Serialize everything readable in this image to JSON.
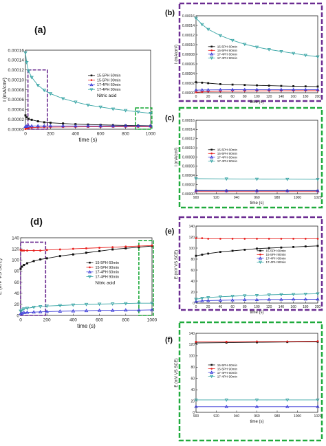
{
  "figure": {
    "colors": {
      "black": "#111111",
      "red": "#e8201e",
      "blue": "#3a3ad8",
      "teal": "#3aa6a6",
      "purple": "#6b2c91",
      "green": "#1faa3c"
    },
    "series_names": [
      "15-5PH 60min",
      "15-5PH 90min",
      "17-4PH 60min",
      "17-4PH 90min"
    ]
  },
  "chart_data": [
    {
      "id": "a",
      "type": "line",
      "panel_label": "(a)",
      "title": "",
      "xlabel": "time (s)",
      "ylabel": "I (mA/cm²)",
      "xlim": [
        0,
        1000
      ],
      "ylim": [
        0,
        0.00016
      ],
      "xticks": [
        "0",
        "200",
        "400",
        "600",
        "800",
        "1000"
      ],
      "yticks": [
        "0.00000",
        "0.00002",
        "0.00004",
        "0.00006",
        "0.00008",
        "0.00010",
        "0.00012",
        "0.00014",
        "0.00016"
      ],
      "legend_position": "center-right",
      "annotation": "Nitric acid",
      "highlight_boxes": [
        {
          "color": "purple",
          "x": [
            20,
            175
          ],
          "y": [
            0,
            0.00012
          ]
        },
        {
          "color": "green",
          "x": [
            880,
            1010
          ],
          "y": [
            0,
            4.3e-05
          ]
        }
      ],
      "series": [
        {
          "name": "15-5PH 60min",
          "color": "black",
          "x": [
            0,
            10,
            25,
            50,
            100,
            150,
            200,
            300,
            400,
            500,
            600,
            700,
            800,
            900,
            1000
          ],
          "values": [
            2.8e-05,
            2.4e-05,
            2.1e-05,
            1.9e-05,
            1.6e-05,
            1.4e-05,
            1.3e-05,
            1.15e-05,
            1.02e-05,
            9.4e-06,
            8.7e-06,
            8.2e-06,
            7.8e-06,
            7.4e-06,
            7.1e-06
          ]
        },
        {
          "name": "15-5PH 90min",
          "color": "red",
          "x": [
            0,
            10,
            25,
            50,
            100,
            150,
            200,
            300,
            400,
            500,
            600,
            700,
            800,
            900,
            1000
          ],
          "values": [
            5e-07,
            1.5e-06,
            2.5e-06,
            3.2e-06,
            3.8e-06,
            4.1e-06,
            4.3e-06,
            4.5e-06,
            4.6e-06,
            4.7e-06,
            4.7e-06,
            4.8e-06,
            4.8e-06,
            4.8e-06,
            4.8e-06
          ]
        },
        {
          "name": "17-4PH 60min",
          "color": "blue",
          "x": [
            0,
            10,
            25,
            50,
            100,
            150,
            200,
            300,
            400,
            500,
            600,
            700,
            800,
            900,
            1000
          ],
          "values": [
            5.5e-06,
            6e-06,
            6.3e-06,
            6.5e-06,
            6.6e-06,
            6.6e-06,
            6.6e-06,
            6.6e-06,
            6.6e-06,
            6.6e-06,
            6.6e-06,
            6.6e-06,
            6.6e-06,
            6.6e-06,
            6.6e-06
          ]
        },
        {
          "name": "17-4PH 90min",
          "color": "teal",
          "x": [
            0,
            10,
            25,
            50,
            100,
            150,
            200,
            300,
            400,
            500,
            600,
            700,
            800,
            900,
            1000
          ],
          "values": [
            0.000155,
            0.000135,
            0.000118,
            0.000105,
            8.9e-05,
            7.9e-05,
            7.2e-05,
            6.2e-05,
            5.5e-05,
            4.9e-05,
            4.5e-05,
            4.1e-05,
            3.8e-05,
            3.5e-05,
            3.2e-05
          ]
        }
      ]
    },
    {
      "id": "b",
      "type": "line",
      "panel_label": "(b)",
      "title": "",
      "xlabel": "time (s)",
      "ylabel": "I (mA/cm²)",
      "xlim": [
        0,
        200
      ],
      "ylim": [
        0,
        0.00016
      ],
      "xticks": [
        "0",
        "20",
        "40",
        "60",
        "80",
        "100",
        "120",
        "140",
        "160",
        "180",
        "200"
      ],
      "yticks": [
        "0.00000",
        "0.00002",
        "0.00004",
        "0.00006",
        "0.00008",
        "0.00010",
        "0.00012",
        "0.00014",
        "0.00016"
      ],
      "legend_position": "center-left",
      "series": [
        {
          "name": "15-5PH 60min",
          "color": "black",
          "x": [
            0,
            10,
            20,
            40,
            60,
            80,
            100,
            120,
            140,
            160,
            180,
            200
          ],
          "values": [
            2.2e-05,
            2.1e-05,
            2e-05,
            1.8e-05,
            1.7e-05,
            1.62e-05,
            1.55e-05,
            1.48e-05,
            1.42e-05,
            1.37e-05,
            1.33e-05,
            1.3e-05
          ]
        },
        {
          "name": "15-5PH 90min",
          "color": "red",
          "x": [
            0,
            10,
            20,
            40,
            60,
            80,
            100,
            120,
            140,
            160,
            180,
            200
          ],
          "values": [
            1e-06,
            1.8e-06,
            2.5e-06,
            3.1e-06,
            3.5e-06,
            3.8e-06,
            4e-06,
            4.1e-06,
            4.2e-06,
            4.3e-06,
            4.3e-06,
            4.3e-06
          ]
        },
        {
          "name": "17-4PH 60min",
          "color": "blue",
          "x": [
            0,
            10,
            20,
            40,
            60,
            80,
            100,
            120,
            140,
            160,
            180,
            200
          ],
          "values": [
            5.5e-06,
            5.8e-06,
            6e-06,
            6.2e-06,
            6.4e-06,
            6.5e-06,
            6.6e-06,
            6.6e-06,
            6.6e-06,
            6.6e-06,
            6.6e-06,
            6.6e-06
          ]
        },
        {
          "name": "17-4PH 90min",
          "color": "teal",
          "x": [
            0,
            10,
            20,
            40,
            60,
            80,
            100,
            120,
            140,
            160,
            180,
            200
          ],
          "values": [
            0.000155,
            0.000142,
            0.000132,
            0.000119,
            0.000109,
            0.000101,
            9.5e-05,
            9e-05,
            8.6e-05,
            8.2e-05,
            7.8e-05,
            7.5e-05
          ]
        }
      ]
    },
    {
      "id": "c",
      "type": "line",
      "panel_label": "(c)",
      "title": "",
      "xlabel": "time (s)",
      "ylabel": "I (mA/cm²)",
      "xlim": [
        900,
        1020
      ],
      "ylim": [
        0,
        0.00016
      ],
      "xticks": [
        "900",
        "920",
        "940",
        "960",
        "980",
        "1000",
        "1020"
      ],
      "yticks": [
        "0.00000",
        "0.00002",
        "0.00004",
        "0.00006",
        "0.00008",
        "0.00010",
        "0.00012",
        "0.00014",
        "0.00016"
      ],
      "legend_position": "center-left",
      "series": [
        {
          "name": "15-5PH 60min",
          "color": "black",
          "x": [
            900,
            930,
            960,
            990,
            1020
          ],
          "values": [
            7.2e-06,
            7.1e-06,
            7.1e-06,
            7e-06,
            7e-06
          ]
        },
        {
          "name": "15-5PH 90min",
          "color": "red",
          "x": [
            900,
            930,
            960,
            990,
            1020
          ],
          "values": [
            4.8e-06,
            4.8e-06,
            4.8e-06,
            4.8e-06,
            4.8e-06
          ]
        },
        {
          "name": "17-4PH 60min",
          "color": "blue",
          "x": [
            900,
            930,
            960,
            990,
            1020
          ],
          "values": [
            6.5e-06,
            6.5e-06,
            6.5e-06,
            6.5e-06,
            6.5e-06
          ]
        },
        {
          "name": "17-4PH 90min",
          "color": "teal",
          "x": [
            900,
            930,
            960,
            990,
            1020
          ],
          "values": [
            3.3e-05,
            3.25e-05,
            3.2e-05,
            3.18e-05,
            3.15e-05
          ]
        }
      ]
    },
    {
      "id": "d",
      "type": "line",
      "panel_label": "(d)",
      "title": "",
      "xlabel": "time (s)",
      "ylabel": "E (mV VS SCE)",
      "xlim": [
        0,
        1000
      ],
      "ylim": [
        0,
        140
      ],
      "xticks": [
        "0",
        "200",
        "400",
        "600",
        "800",
        "1000"
      ],
      "yticks": [
        "0",
        "20",
        "40",
        "60",
        "80",
        "100",
        "120",
        "140"
      ],
      "legend_position": "center-right",
      "annotation": "Nitric acid",
      "highlight_boxes": [
        {
          "color": "purple",
          "x": [
            0,
            190
          ],
          "y": [
            0,
            132
          ]
        },
        {
          "color": "green",
          "x": [
            900,
            1010
          ],
          "y": [
            0,
            135
          ]
        }
      ],
      "series": [
        {
          "name": "15-5PH 60min",
          "color": "black",
          "x": [
            0,
            10,
            25,
            50,
            100,
            150,
            200,
            300,
            400,
            500,
            600,
            700,
            800,
            900,
            1000
          ],
          "values": [
            84,
            88,
            91,
            94,
            98,
            101,
            103,
            107,
            110,
            113,
            116,
            119,
            121,
            123,
            125
          ]
        },
        {
          "name": "15-5PH 90min",
          "color": "red",
          "x": [
            0,
            10,
            25,
            50,
            100,
            150,
            200,
            300,
            400,
            500,
            600,
            700,
            800,
            900,
            1000
          ],
          "values": [
            118,
            117,
            117,
            117,
            117,
            117,
            118,
            119,
            120,
            121,
            122,
            123,
            124,
            125,
            126
          ]
        },
        {
          "name": "17-4PH 60min",
          "color": "blue",
          "x": [
            0,
            10,
            25,
            50,
            100,
            150,
            200,
            300,
            400,
            500,
            600,
            700,
            800,
            900,
            1000
          ],
          "values": [
            3,
            4,
            5,
            5.5,
            6,
            6.5,
            7,
            7.5,
            8,
            8.5,
            9,
            9,
            9.5,
            9.5,
            10
          ]
        },
        {
          "name": "17-4PH 90min",
          "color": "teal",
          "x": [
            0,
            10,
            25,
            50,
            100,
            150,
            200,
            300,
            400,
            500,
            600,
            700,
            800,
            900,
            1000
          ],
          "values": [
            8,
            10,
            12,
            13,
            15,
            16,
            17,
            18,
            19,
            20,
            20.5,
            21,
            21.5,
            22,
            22
          ]
        }
      ]
    },
    {
      "id": "e",
      "type": "line",
      "panel_label": "(e)",
      "title": "",
      "xlabel": "time (s)",
      "ylabel": "E (mV VS SCE)",
      "xlim": [
        0,
        200
      ],
      "ylim": [
        0,
        140
      ],
      "xticks": [
        "0",
        "20",
        "40",
        "60",
        "80",
        "100",
        "120",
        "140",
        "160",
        "180",
        "200"
      ],
      "yticks": [
        "0",
        "20",
        "40",
        "60",
        "80",
        "100",
        "120",
        "140"
      ],
      "legend_position": "center-right",
      "series": [
        {
          "name": "15-5PH 60min",
          "color": "black",
          "x": [
            0,
            10,
            20,
            40,
            60,
            80,
            100,
            120,
            140,
            160,
            180,
            200
          ],
          "values": [
            86,
            88,
            90,
            93,
            95,
            97,
            99,
            100,
            101,
            102,
            103,
            104
          ]
        },
        {
          "name": "15-5PH 90min",
          "color": "red",
          "x": [
            0,
            10,
            20,
            40,
            60,
            80,
            100,
            120,
            140,
            160,
            180,
            200
          ],
          "values": [
            118,
            118,
            117,
            117,
            117,
            117,
            117,
            117,
            117,
            117,
            117,
            117
          ]
        },
        {
          "name": "17-4PH 60min",
          "color": "blue",
          "x": [
            0,
            10,
            20,
            40,
            60,
            80,
            100,
            120,
            140,
            160,
            180,
            200
          ],
          "values": [
            3,
            4,
            4.5,
            5,
            5.5,
            6,
            6,
            6.5,
            6.5,
            7,
            7,
            7
          ]
        },
        {
          "name": "17-4PH 90min",
          "color": "teal",
          "x": [
            0,
            10,
            20,
            40,
            60,
            80,
            100,
            120,
            140,
            160,
            180,
            200
          ],
          "values": [
            7,
            9,
            10,
            11.5,
            12.5,
            13.5,
            14,
            15,
            15.5,
            16,
            16.5,
            17
          ]
        }
      ]
    },
    {
      "id": "f",
      "type": "line",
      "panel_label": "(f)",
      "title": "",
      "xlabel": "time (s)",
      "ylabel": "E (mV VS SCE)",
      "xlim": [
        900,
        1020
      ],
      "ylim": [
        0,
        140
      ],
      "xticks": [
        "900",
        "920",
        "940",
        "960",
        "980",
        "1000",
        "1020"
      ],
      "yticks": [
        "0",
        "20",
        "40",
        "60",
        "80",
        "100",
        "120",
        "140"
      ],
      "legend_position": "center-left",
      "series": [
        {
          "name": "15-5PH 60min",
          "color": "black",
          "x": [
            900,
            930,
            960,
            990,
            1020
          ],
          "values": [
            123,
            123.5,
            124,
            124.5,
            125
          ]
        },
        {
          "name": "15-5PH 90min",
          "color": "red",
          "x": [
            900,
            930,
            960,
            990,
            1020
          ],
          "values": [
            125,
            125,
            125.5,
            125.5,
            126
          ]
        },
        {
          "name": "17-4PH 60min",
          "color": "blue",
          "x": [
            900,
            930,
            960,
            990,
            1020
          ],
          "values": [
            10,
            10,
            10,
            10,
            10
          ]
        },
        {
          "name": "17-4PH 90min",
          "color": "teal",
          "x": [
            900,
            930,
            960,
            990,
            1020
          ],
          "values": [
            22,
            22,
            22,
            22,
            22
          ]
        }
      ]
    }
  ]
}
